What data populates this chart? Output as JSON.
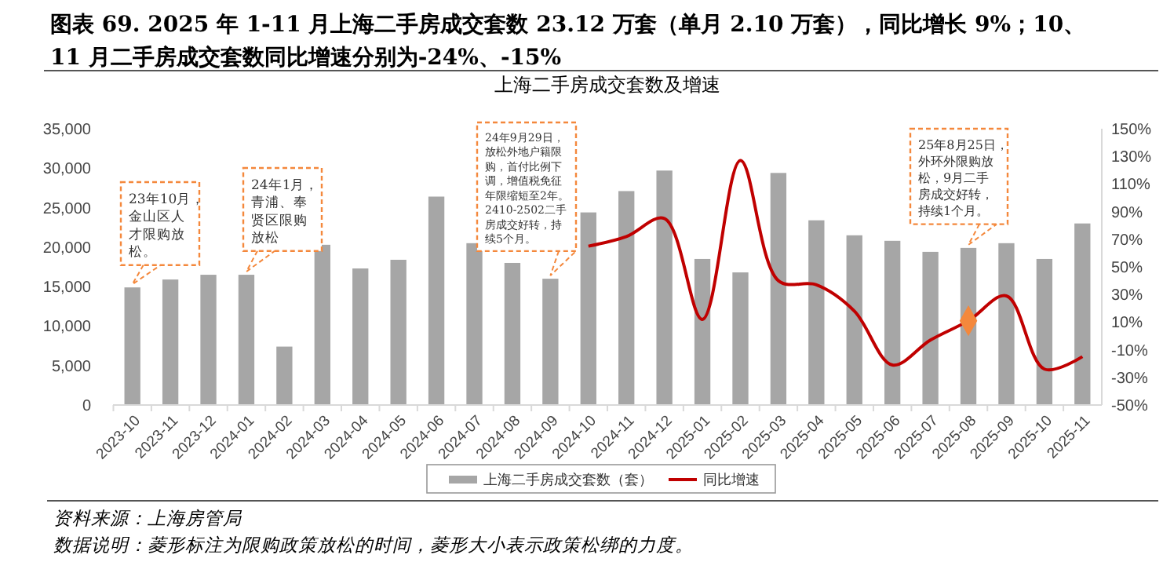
{
  "chart_data": {
    "type": "bar",
    "title": "图表 69. 2025 年 1-11 月上海二手房成交套数 23.12 万套（单月 2.10 万套），同比增长 9%；10、11 月二手房成交套数同比增速分别为-24%、-15%",
    "subtitle": "上海二手房成交套数及增速",
    "categories": [
      "2023-10",
      "2023-11",
      "2023-12",
      "2024-01",
      "2024-02",
      "2024-03",
      "2024-04",
      "2024-05",
      "2024-06",
      "2024-07",
      "2024-08",
      "2024-09",
      "2024-10",
      "2024-11",
      "2024-12",
      "2025-01",
      "2025-02",
      "2025-03",
      "2025-04",
      "2025-05",
      "2025-06",
      "2025-07",
      "2025-08",
      "2025-09",
      "2025-10",
      "2025-11"
    ],
    "series": [
      {
        "name": "上海二手房成交套数（套）",
        "color": "#a6a6a6",
        "values": [
          14900,
          15900,
          16500,
          16500,
          7400,
          20300,
          17300,
          18400,
          26400,
          20500,
          18000,
          16000,
          24400,
          27100,
          29700,
          18500,
          16800,
          29400,
          23400,
          21500,
          20800,
          19400,
          19900,
          20500,
          18500,
          23000
        ]
      },
      {
        "name": "同比增速",
        "type": "line",
        "axis": "y2",
        "color": "#c00000",
        "marker": "none",
        "values": [
          null,
          null,
          null,
          null,
          null,
          null,
          null,
          null,
          null,
          null,
          null,
          null,
          65,
          72,
          85,
          12,
          127,
          40,
          37,
          18,
          -21,
          -3,
          11,
          29,
          -24,
          -15
        ]
      },
      {
        "type": "scatter",
        "axis": "y2",
        "color": "#f4883c",
        "marker": "diamond",
        "values": [
          null,
          null,
          null,
          null,
          null,
          null,
          null,
          null,
          null,
          null,
          null,
          null,
          null,
          null,
          null,
          null,
          null,
          null,
          null,
          null,
          null,
          null,
          11,
          null,
          null,
          null
        ]
      }
    ],
    "ylim": [
      0,
      35000
    ],
    "yticks": [
      {
        "value": 0,
        "label": "0"
      },
      {
        "value": 5000,
        "label": "5,000"
      },
      {
        "value": 10000,
        "label": "10,000"
      },
      {
        "value": 15000,
        "label": "15,000"
      },
      {
        "value": 20000,
        "label": "20,000"
      },
      {
        "value": 25000,
        "label": "25,000"
      },
      {
        "value": 30000,
        "label": "30,000"
      },
      {
        "value": 35000,
        "label": "35,000"
      }
    ],
    "y2lim": [
      -50,
      150
    ],
    "y2ticks": [
      {
        "value": -50,
        "label": "-50%"
      },
      {
        "value": -30,
        "label": "-30%"
      },
      {
        "value": -10,
        "label": "-10%"
      },
      {
        "value": 10,
        "label": "10%"
      },
      {
        "value": 30,
        "label": "30%"
      },
      {
        "value": 50,
        "label": "50%"
      },
      {
        "value": 70,
        "label": "70%"
      },
      {
        "value": 90,
        "label": "90%"
      },
      {
        "value": 110,
        "label": "110%"
      },
      {
        "value": 130,
        "label": "130%"
      },
      {
        "value": 150,
        "label": "150%"
      }
    ],
    "grid": false,
    "legend": "bottom",
    "annotations": [
      {
        "text": "23年10月，金山区人才限购放松。",
        "x": "2023-10",
        "y": 14900
      },
      {
        "text": "24年1月，青浦、奉贤区限购放松",
        "x": "2024-01",
        "y": 16500
      },
      {
        "text": "24年9月29日，放松外地户籍限购，首付比例下调，增值税免征年限缩短至2年。2410-2502二手房成交好转，持续5个月。",
        "x": "2024-09",
        "y": 16000
      },
      {
        "text": "25年8月25日，外环外限购放松，9月二手房成交好转，持续1个月。",
        "x": "2025-08",
        "y": 19900
      },
      "资料来源：上海房管局",
      "数据说明：菱形标注为限购政策放松的时间，菱形大小表示政策松绑的力度。"
    ]
  }
}
